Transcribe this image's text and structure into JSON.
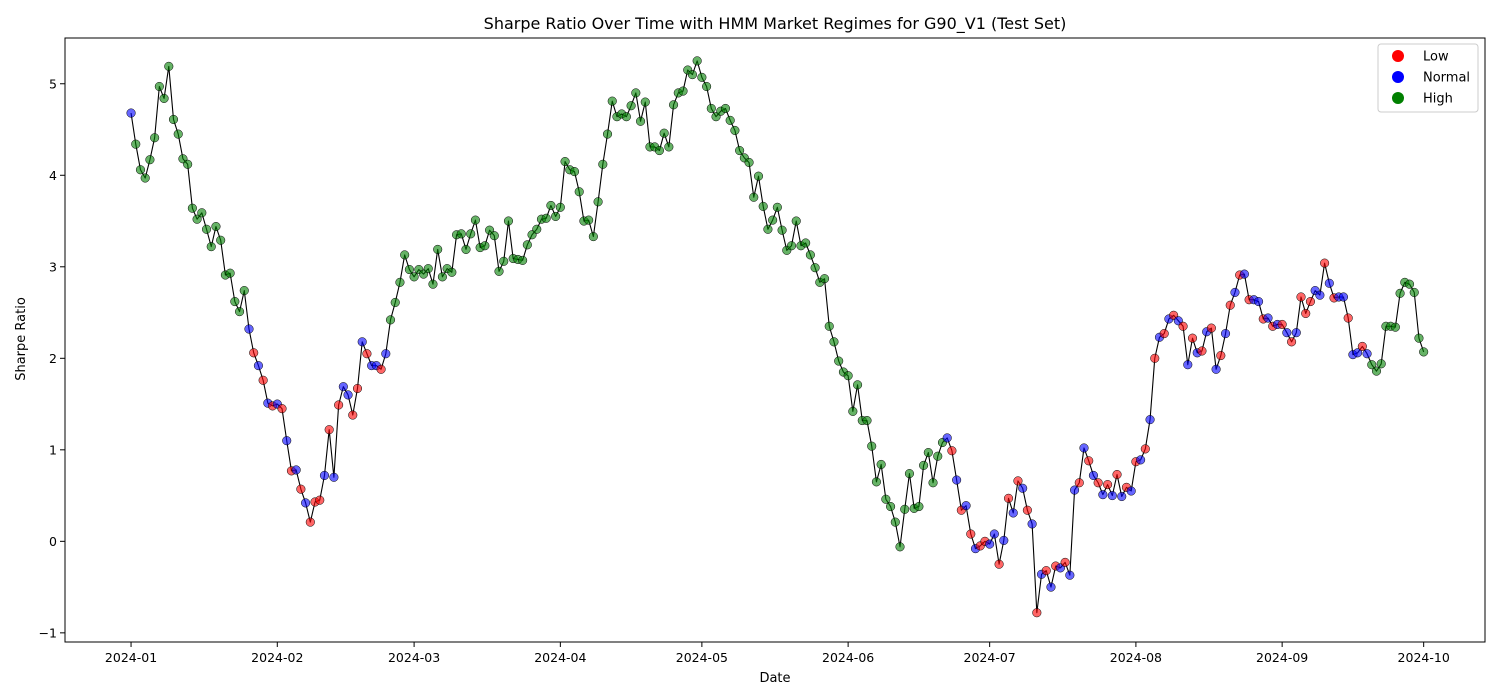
{
  "chart_data": {
    "type": "scatter",
    "title": "Sharpe Ratio Over Time with HMM Market Regimes for G90_V1 (Test Set)",
    "xlabel": "Date",
    "ylabel": "Sharpe Ratio",
    "start_date": "2024-01-01",
    "xlim": [
      "2023-12-18",
      "2024-10-14"
    ],
    "ylim": [
      -1.1,
      5.5
    ],
    "x_ticks": [
      "2024-01",
      "2024-02",
      "2024-03",
      "2024-04",
      "2024-05",
      "2024-06",
      "2024-07",
      "2024-08",
      "2024-09",
      "2024-10"
    ],
    "y_ticks": [
      -1,
      0,
      1,
      2,
      3,
      4,
      5
    ],
    "grid": false,
    "legend_position": "top-right",
    "line_color": "#000000",
    "legend": [
      {
        "label": "Low",
        "color": "#ff0000"
      },
      {
        "label": "Normal",
        "color": "#0000ff"
      },
      {
        "label": "High",
        "color": "#008000"
      }
    ],
    "regime_colors": {
      "L": "#ff0000",
      "N": "#0000ff",
      "H": "#008000"
    },
    "series": [
      {
        "name": "Sharpe Ratio",
        "x_start": "2024-01-01",
        "x_step_days": 1,
        "values": [
          4.68,
          4.34,
          4.06,
          3.97,
          4.17,
          4.41,
          4.97,
          4.84,
          5.19,
          4.61,
          4.45,
          4.18,
          4.12,
          3.64,
          3.52,
          3.59,
          3.41,
          3.22,
          3.44,
          3.29,
          2.91,
          2.93,
          2.62,
          2.51,
          2.74,
          2.32,
          2.06,
          1.92,
          1.76,
          1.51,
          1.48,
          1.5,
          1.45,
          1.1,
          0.77,
          0.78,
          0.57,
          0.42,
          0.21,
          0.43,
          0.45,
          0.72,
          1.22,
          0.7,
          1.49,
          1.69,
          1.6,
          1.38,
          1.67,
          2.18,
          2.05,
          1.92,
          1.92,
          1.88,
          2.05,
          2.42,
          2.61,
          2.83,
          3.13,
          2.97,
          2.89,
          2.97,
          2.92,
          2.98,
          2.81,
          3.19,
          2.89,
          2.98,
          2.94,
          3.35,
          3.36,
          3.19,
          3.36,
          3.51,
          3.21,
          3.23,
          3.4,
          3.34,
          2.95,
          3.06,
          3.5,
          3.09,
          3.08,
          3.07,
          3.24,
          3.35,
          3.41,
          3.52,
          3.53,
          3.67,
          3.55,
          3.65,
          4.15,
          4.06,
          4.04,
          3.82,
          3.5,
          3.51,
          3.33,
          3.71,
          4.12,
          4.45,
          4.81,
          4.64,
          4.67,
          4.64,
          4.76,
          4.9,
          4.59,
          4.8,
          4.31,
          4.31,
          4.27,
          4.46,
          4.31,
          4.77,
          4.9,
          4.92,
          5.15,
          5.1,
          5.25,
          5.07,
          4.97,
          4.73,
          4.64,
          4.7,
          4.73,
          4.6,
          4.49,
          4.27,
          4.19,
          4.14,
          3.76,
          3.99,
          3.66,
          3.41,
          3.51,
          3.65,
          3.4,
          3.18,
          3.23,
          3.5,
          3.23,
          3.26,
          3.13,
          2.99,
          2.83,
          2.87,
          2.35,
          2.18,
          1.97,
          1.85,
          1.81,
          1.42,
          1.71,
          1.32,
          1.32,
          1.04,
          0.65,
          0.84,
          0.46,
          0.38,
          0.21,
          -0.06,
          0.35,
          0.74,
          0.36,
          0.38,
          0.83,
          0.97,
          0.64,
          0.93,
          1.08,
          1.13,
          0.99,
          0.67,
          0.34,
          0.39,
          0.08,
          -0.08,
          -0.05,
          0.0,
          -0.03,
          0.08,
          -0.25,
          0.01,
          0.47,
          0.31,
          0.66,
          0.58,
          0.34,
          0.19,
          -0.78,
          -0.36,
          -0.32,
          -0.5,
          -0.27,
          -0.29,
          -0.23,
          -0.37,
          0.56,
          0.64,
          1.02,
          0.88,
          0.72,
          0.64,
          0.51,
          0.62,
          0.5,
          0.73,
          0.49,
          0.59,
          0.55,
          0.87,
          0.89,
          1.01,
          1.33,
          2.0,
          2.23,
          2.27,
          2.43,
          2.47,
          2.41,
          2.35,
          1.93,
          2.22,
          2.06,
          2.08,
          2.29,
          2.33,
          1.88,
          2.03,
          2.27,
          2.58,
          2.72,
          2.91,
          2.92,
          2.64,
          2.64,
          2.62,
          2.43,
          2.44,
          2.35,
          2.37,
          2.37,
          2.28,
          2.18,
          2.28,
          2.67,
          2.49,
          2.62,
          2.74,
          2.69,
          3.04,
          2.82,
          2.66,
          2.67,
          2.67,
          2.44,
          2.04,
          2.06,
          2.13,
          2.05,
          1.93,
          1.86,
          1.94,
          2.35,
          2.35,
          2.34,
          2.71,
          2.83,
          2.81,
          2.72,
          2.22,
          2.07
        ],
        "regimes": "NHHHHHHHHHHHHHHHHHHHHHHHHNLNLNLNLNLNLNLLLNLNLNNLLNLNNLNHHHHHHHHHHHHHHHHHHHHHHHHHHHHHHHHHHHHHHHHHHHHHHHHHHHHHHHHHHHHHHHHHHHHHHHHHHHHHHHHHHHHHHHHHHHHHHHHHHHHHHHHHHHHHHHHHHHHHHNLNLNLNLLNNLNLNLNLNLNLNLNLNNLNLNLNLNLNLNLNLNLNLNLNLNLNLNLNLNLNLNLNNLNLNLNLNLLLNNLNLNNLNNLNHHHHHHHHHHHHHHHHHHHHHHHHHHHHHHHHHHHHHHHHHHHHHH"
      }
    ]
  }
}
